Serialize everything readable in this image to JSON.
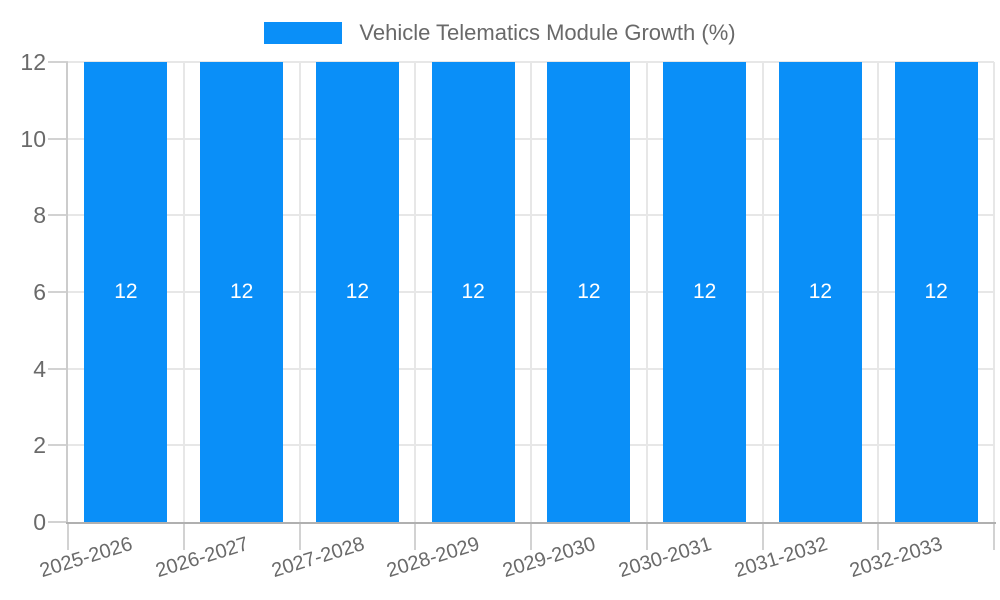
{
  "chart_data": {
    "type": "bar",
    "title": "Vehicle Telematics Module Growth (%)",
    "categories": [
      "2025-2026",
      "2026-2027",
      "2027-2028",
      "2028-2029",
      "2029-2030",
      "2030-2031",
      "2031-2032",
      "2032-2033"
    ],
    "values": [
      12,
      12,
      12,
      12,
      12,
      12,
      12,
      12
    ],
    "bar_labels": [
      "12",
      "12",
      "12",
      "12",
      "12",
      "12",
      "12",
      "12"
    ],
    "xlabel": "",
    "ylabel": "",
    "ylim": [
      0,
      12
    ],
    "yticks": [
      0,
      2,
      4,
      6,
      8,
      10,
      12
    ],
    "grid": true,
    "legend_position": "top-center",
    "colors": {
      "bar": "#0a8ff8",
      "bar_label_text": "#ffffff",
      "axis_text": "#6a6a6a",
      "legend_text": "#696969",
      "gridline": "#e7e7e7",
      "y_axis_line": "#cccccc",
      "x_axis_line": "#b0b0b0",
      "tick_mark": "#d2d2d2",
      "background": "#ffffff"
    }
  }
}
